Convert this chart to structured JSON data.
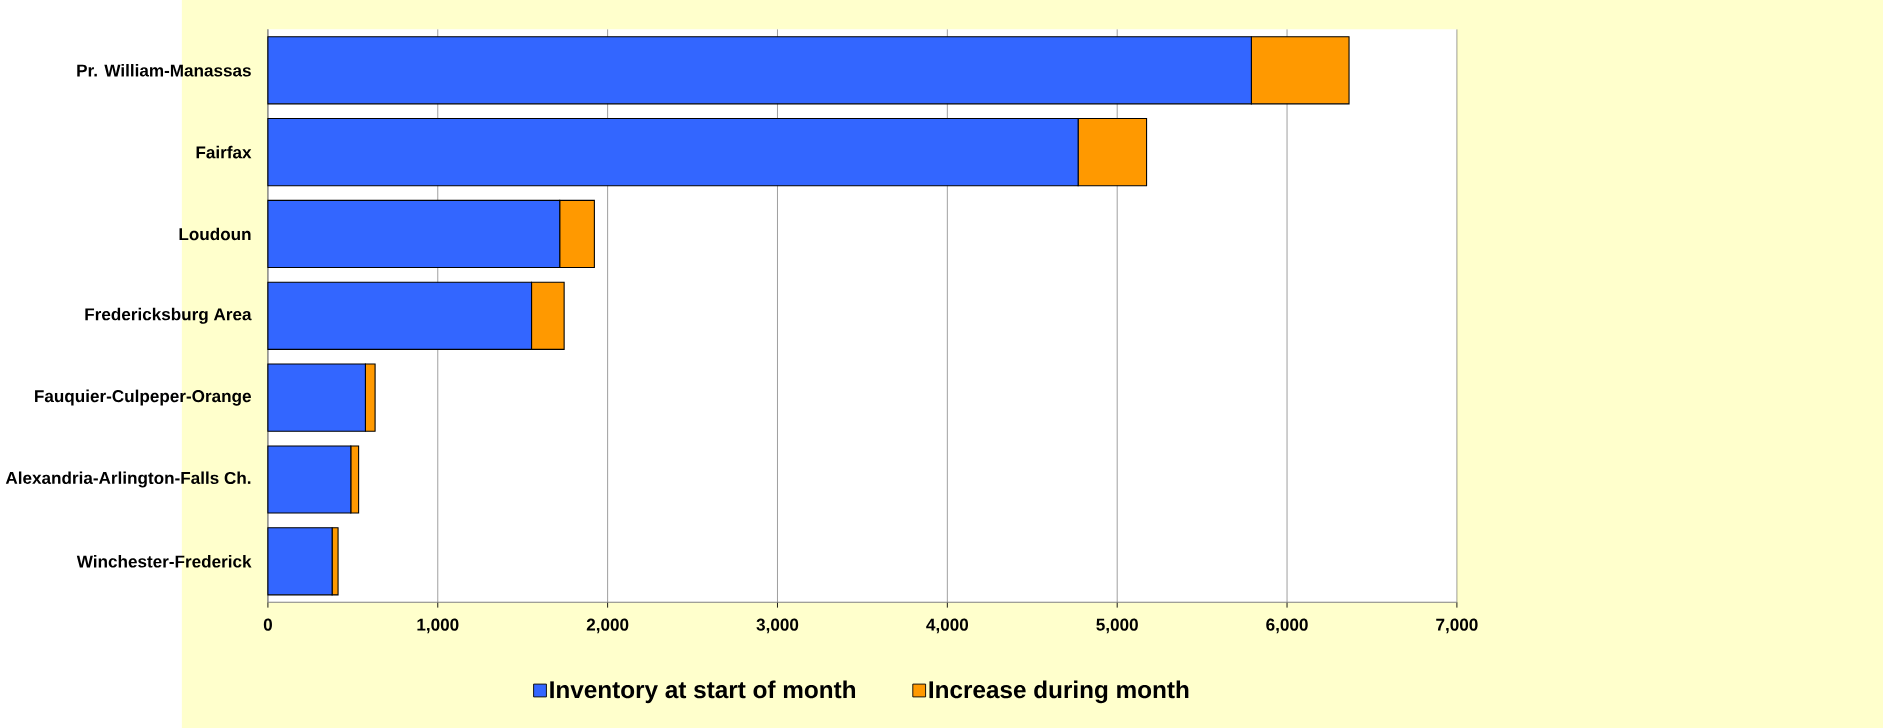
{
  "chart_data": {
    "type": "bar",
    "orientation": "horizontal",
    "stacked": true,
    "categories": [
      "Pr. William-Manassas",
      "Fairfax",
      "Loudoun",
      "Fredericksburg Area",
      "Fauquier-Culpeper-Orange",
      "Alexandria-Arlington-Falls Ch.",
      "Winchester-Frederick"
    ],
    "series": [
      {
        "name": "Inventory at start of month",
        "color": "#3366ff",
        "values": [
          5790,
          4770,
          1718,
          1552,
          574,
          488,
          378
        ]
      },
      {
        "name": "Increase during month",
        "color": "#ff9900",
        "values": [
          575,
          403,
          204,
          192,
          57,
          46,
          35
        ]
      }
    ],
    "xlim": [
      0,
      7000
    ],
    "xticks": [
      {
        "value": 0,
        "label": "0"
      },
      {
        "value": 1000,
        "label": "1,000"
      },
      {
        "value": 2000,
        "label": "2,000"
      },
      {
        "value": 3000,
        "label": "3,000"
      },
      {
        "value": 4000,
        "label": "4,000"
      },
      {
        "value": 5000,
        "label": "5,000"
      },
      {
        "value": 6000,
        "label": "6,000"
      },
      {
        "value": 7000,
        "label": "7,000"
      }
    ],
    "grid": "x",
    "legend": "bottom"
  }
}
